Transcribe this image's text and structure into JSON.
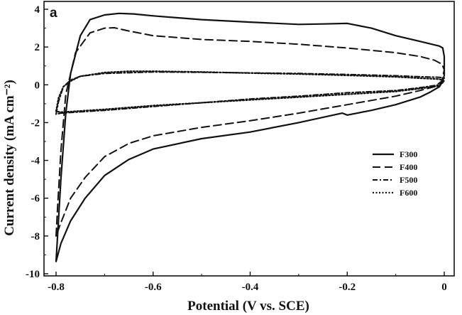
{
  "chart_data": {
    "type": "line",
    "panel_label": "a",
    "xlabel": "Potential (V vs. SCE)",
    "ylabel": "Current density (mA cm⁻²)",
    "xlim": [
      -0.82,
      0.0
    ],
    "ylim": [
      -10,
      4.3
    ],
    "x_ticks": [
      -0.8,
      -0.6,
      -0.4,
      -0.2,
      0
    ],
    "x_tick_labels": [
      "-0.8",
      "-0.6",
      "-0.4",
      "-0.2",
      "0"
    ],
    "y_ticks": [
      -10,
      -8,
      -6,
      -4,
      -2,
      0,
      2,
      4
    ],
    "y_tick_labels": [
      "-10",
      "-8",
      "-6",
      "-4",
      "-2",
      "0",
      "2",
      "4"
    ],
    "grid": false,
    "legend_position": "right",
    "series": [
      {
        "name": "F300",
        "dash": "solid",
        "x": [
          -0.8,
          -0.797,
          -0.79,
          -0.78,
          -0.77,
          -0.75,
          -0.73,
          -0.7,
          -0.67,
          -0.64,
          -0.6,
          -0.5,
          -0.4,
          -0.3,
          -0.25,
          -0.2,
          -0.15,
          -0.1,
          -0.05,
          -0.01,
          -0.003,
          0.0,
          0.0,
          -0.003,
          -0.01,
          -0.03,
          -0.05,
          -0.1,
          -0.15,
          -0.2,
          -0.21,
          -0.3,
          -0.4,
          -0.5,
          -0.6,
          -0.65,
          -0.7,
          -0.74,
          -0.77,
          -0.79,
          -0.8
        ],
        "y": [
          -9.35,
          -8.0,
          -5.0,
          -1.5,
          0.6,
          2.6,
          3.45,
          3.7,
          3.78,
          3.75,
          3.65,
          3.45,
          3.32,
          3.2,
          3.22,
          3.25,
          3.0,
          2.6,
          2.3,
          2.05,
          1.95,
          1.5,
          0.5,
          0.2,
          -0.1,
          -0.4,
          -0.65,
          -1.05,
          -1.35,
          -1.6,
          -1.5,
          -2.0,
          -2.5,
          -2.85,
          -3.4,
          -3.95,
          -4.8,
          -6.0,
          -7.2,
          -8.4,
          -9.35
        ]
      },
      {
        "name": "F400",
        "dash": "long",
        "x": [
          -0.8,
          -0.797,
          -0.79,
          -0.78,
          -0.76,
          -0.73,
          -0.7,
          -0.68,
          -0.65,
          -0.6,
          -0.5,
          -0.4,
          -0.3,
          -0.2,
          -0.1,
          -0.05,
          -0.02,
          -0.005,
          0.0,
          -0.005,
          -0.02,
          -0.05,
          -0.1,
          -0.2,
          -0.3,
          -0.4,
          -0.5,
          -0.6,
          -0.65,
          -0.7,
          -0.74,
          -0.77,
          -0.79,
          -0.8
        ],
        "y": [
          -8.0,
          -6.5,
          -3.5,
          -0.5,
          1.7,
          2.75,
          3.0,
          3.02,
          2.85,
          2.6,
          2.4,
          2.3,
          2.15,
          1.95,
          1.7,
          1.5,
          1.3,
          1.1,
          0.8,
          0.2,
          -0.1,
          -0.3,
          -0.6,
          -1.05,
          -1.5,
          -1.9,
          -2.25,
          -2.7,
          -3.1,
          -3.8,
          -4.9,
          -6.0,
          -7.3,
          -8.0
        ]
      },
      {
        "name": "F500",
        "dash": "dashdot",
        "x": [
          -0.8,
          -0.795,
          -0.785,
          -0.77,
          -0.75,
          -0.7,
          -0.6,
          -0.5,
          -0.4,
          -0.3,
          -0.2,
          -0.1,
          -0.05,
          -0.01,
          0.0,
          -0.01,
          -0.05,
          -0.1,
          -0.2,
          -0.3,
          -0.4,
          -0.5,
          -0.6,
          -0.7,
          -0.76,
          -0.79,
          -0.8
        ],
        "y": [
          -1.55,
          -0.9,
          -0.1,
          0.25,
          0.45,
          0.6,
          0.68,
          0.66,
          0.63,
          0.6,
          0.55,
          0.48,
          0.43,
          0.4,
          0.35,
          0.0,
          -0.15,
          -0.3,
          -0.42,
          -0.6,
          -0.75,
          -0.95,
          -1.15,
          -1.35,
          -1.45,
          -1.5,
          -1.55
        ]
      },
      {
        "name": "F600",
        "dash": "dotted",
        "x": [
          -0.8,
          -0.795,
          -0.785,
          -0.77,
          -0.75,
          -0.7,
          -0.65,
          -0.6,
          -0.5,
          -0.4,
          -0.3,
          -0.2,
          -0.1,
          -0.05,
          -0.01,
          0.0,
          -0.01,
          -0.05,
          -0.1,
          -0.2,
          -0.3,
          -0.4,
          -0.5,
          -0.6,
          -0.7,
          -0.76,
          -0.79,
          -0.8
        ],
        "y": [
          -1.4,
          -0.7,
          -0.1,
          0.2,
          0.45,
          0.65,
          0.72,
          0.72,
          0.68,
          0.62,
          0.57,
          0.5,
          0.42,
          0.35,
          0.3,
          0.2,
          -0.05,
          -0.2,
          -0.35,
          -0.5,
          -0.65,
          -0.8,
          -0.95,
          -1.1,
          -1.3,
          -1.4,
          -1.45,
          -1.4
        ]
      }
    ]
  }
}
